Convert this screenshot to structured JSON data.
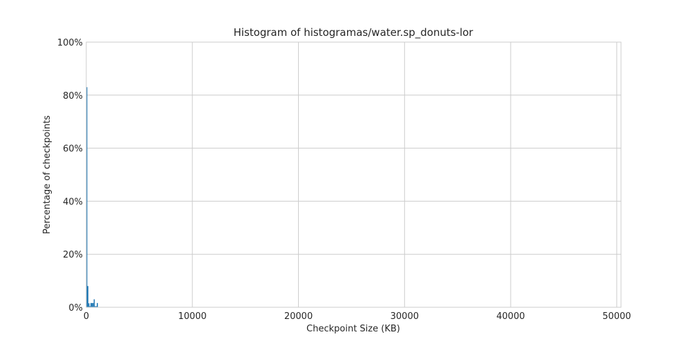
{
  "chart_data": {
    "type": "bar",
    "title": "Histogram of histogramas/water.sp_donuts-lor",
    "xlabel": "Checkpoint Size (KB)",
    "ylabel": "Percentage of checkpoints",
    "xlim": [
      0,
      50400
    ],
    "ylim": [
      0,
      100
    ],
    "x_ticks": [
      0,
      10000,
      20000,
      30000,
      40000,
      50000
    ],
    "x_tick_labels": [
      "0",
      "10000",
      "20000",
      "30000",
      "40000",
      "50000"
    ],
    "y_ticks": [
      0,
      20,
      40,
      60,
      80,
      100
    ],
    "y_tick_labels": [
      "0%",
      "20%",
      "40%",
      "60%",
      "80%",
      "100%"
    ],
    "grid": true,
    "bar_color": "#1f77b4",
    "bins": [
      {
        "x0": 0,
        "x1": 100,
        "value": 83
      },
      {
        "x0": 100,
        "x1": 200,
        "value": 8
      },
      {
        "x0": 200,
        "x1": 300,
        "value": 1.5
      },
      {
        "x0": 300,
        "x1": 400,
        "value": 0.4
      },
      {
        "x0": 400,
        "x1": 500,
        "value": 1.6
      },
      {
        "x0": 500,
        "x1": 600,
        "value": 1.6
      },
      {
        "x0": 600,
        "x1": 700,
        "value": 1.6
      },
      {
        "x0": 700,
        "x1": 800,
        "value": 3
      },
      {
        "x0": 800,
        "x1": 900,
        "value": 0.4
      },
      {
        "x0": 900,
        "x1": 1000,
        "value": 0.4
      },
      {
        "x0": 1000,
        "x1": 1100,
        "value": 1.6
      }
    ]
  }
}
